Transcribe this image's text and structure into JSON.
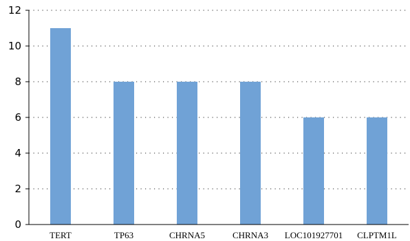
{
  "chart_data": {
    "type": "bar",
    "categories": [
      "TERT",
      "TP63",
      "CHRNA5",
      "CHRNA3",
      "LOC101927701",
      "CLPTM1L"
    ],
    "values": [
      11,
      8,
      8,
      8,
      6,
      6
    ],
    "ylim": [
      0,
      12
    ],
    "yticks": [
      0,
      2,
      4,
      6,
      8,
      10,
      12
    ],
    "grid": "dotted-horizontal",
    "bar_color": "#70A2D6",
    "axis_color": "#000000",
    "grid_color": "#555555"
  }
}
